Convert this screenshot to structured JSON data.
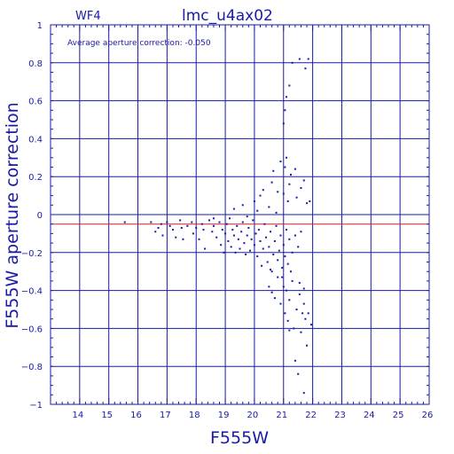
{
  "chart_data": {
    "type": "scatter",
    "title": "lmc_u4ax02",
    "chip": "WF4",
    "annotation": "Average aperture correction: -0.050",
    "xlabel": "F555W",
    "ylabel": "F555W aperture correction",
    "xlim": [
      13,
      26
    ],
    "ylim": [
      -1,
      1
    ],
    "xticks": [
      14,
      15,
      16,
      17,
      18,
      19,
      20,
      21,
      22,
      23,
      24,
      25,
      26
    ],
    "yticks": [
      -1,
      -0.8,
      -0.6,
      -0.4,
      -0.2,
      0,
      0.2,
      0.4,
      0.6,
      0.8,
      1
    ],
    "ytick_labels": [
      "−1",
      "−0.8",
      "−0.6",
      "−0.4",
      "−0.2",
      "0",
      "0.2",
      "0.4",
      "0.6",
      "0.8",
      "1"
    ],
    "grid": true,
    "average_line": -0.05,
    "colors": {
      "axes": "#1a1aa6",
      "points": "#1a1aa6",
      "average_line": "#cc2222"
    },
    "points": [
      [
        15.55,
        -0.04
      ],
      [
        16.45,
        -0.04
      ],
      [
        16.6,
        -0.09
      ],
      [
        16.7,
        -0.07
      ],
      [
        16.8,
        -0.05
      ],
      [
        16.85,
        -0.11
      ],
      [
        17.0,
        -0.04
      ],
      [
        17.1,
        -0.06
      ],
      [
        17.2,
        -0.08
      ],
      [
        17.3,
        -0.12
      ],
      [
        17.45,
        -0.03
      ],
      [
        17.5,
        -0.07
      ],
      [
        17.55,
        -0.13
      ],
      [
        17.7,
        -0.06
      ],
      [
        17.85,
        -0.04
      ],
      [
        17.9,
        -0.1
      ],
      [
        18.0,
        -0.07
      ],
      [
        18.1,
        -0.13
      ],
      [
        18.2,
        -0.05
      ],
      [
        18.25,
        -0.08
      ],
      [
        18.3,
        -0.18
      ],
      [
        18.45,
        -0.03
      ],
      [
        18.55,
        -0.09
      ],
      [
        18.6,
        -0.06
      ],
      [
        18.7,
        -0.12
      ],
      [
        18.8,
        -0.04
      ],
      [
        18.85,
        -0.16
      ],
      [
        18.9,
        -0.08
      ],
      [
        18.95,
        -0.2
      ],
      [
        19.0,
        -0.1
      ],
      [
        19.05,
        -0.05
      ],
      [
        19.1,
        -0.14
      ],
      [
        19.15,
        -0.02
      ],
      [
        19.2,
        -0.17
      ],
      [
        19.25,
        -0.08
      ],
      [
        19.3,
        -0.11
      ],
      [
        19.35,
        -0.2
      ],
      [
        19.4,
        -0.06
      ],
      [
        19.45,
        -0.13
      ],
      [
        19.5,
        -0.18
      ],
      [
        19.55,
        -0.09
      ],
      [
        19.6,
        -0.04
      ],
      [
        19.65,
        -0.15
      ],
      [
        19.7,
        -0.21
      ],
      [
        19.75,
        -0.11
      ],
      [
        19.8,
        -0.07
      ],
      [
        19.85,
        -0.19
      ],
      [
        19.9,
        -0.13
      ],
      [
        19.95,
        -0.03
      ],
      [
        20.0,
        -0.16
      ],
      [
        20.05,
        -0.1
      ],
      [
        20.1,
        -0.22
      ],
      [
        20.15,
        -0.08
      ],
      [
        20.2,
        -0.14
      ],
      [
        20.25,
        -0.27
      ],
      [
        20.3,
        -0.18
      ],
      [
        20.35,
        -0.05
      ],
      [
        20.4,
        -0.12
      ],
      [
        20.45,
        -0.25
      ],
      [
        20.5,
        -0.17
      ],
      [
        20.55,
        -0.09
      ],
      [
        20.6,
        -0.3
      ],
      [
        20.65,
        -0.21
      ],
      [
        20.7,
        -0.14
      ],
      [
        20.75,
        -0.06
      ],
      [
        20.8,
        -0.24
      ],
      [
        20.85,
        -0.19
      ],
      [
        20.9,
        -0.11
      ],
      [
        20.95,
        -0.28
      ],
      [
        21.0,
        -0.16
      ],
      [
        21.05,
        -0.22
      ],
      [
        21.1,
        -0.08
      ],
      [
        21.15,
        -0.26
      ],
      [
        21.2,
        -0.13
      ],
      [
        21.3,
        -0.2
      ],
      [
        21.4,
        -0.11
      ],
      [
        21.5,
        -0.17
      ],
      [
        21.6,
        -0.09
      ],
      [
        18.6,
        -0.02
      ],
      [
        19.3,
        0.03
      ],
      [
        19.6,
        0.05
      ],
      [
        19.75,
        -0.01
      ],
      [
        20.0,
        0.07
      ],
      [
        20.1,
        0.02
      ],
      [
        20.2,
        0.1
      ],
      [
        20.3,
        0.13
      ],
      [
        20.5,
        0.04
      ],
      [
        20.6,
        0.17
      ],
      [
        20.65,
        0.23
      ],
      [
        20.75,
        0.01
      ],
      [
        20.8,
        0.12
      ],
      [
        20.9,
        0.28
      ],
      [
        21.0,
        0.11
      ],
      [
        21.05,
        0.25
      ],
      [
        21.1,
        0.3
      ],
      [
        21.15,
        0.07
      ],
      [
        21.2,
        0.16
      ],
      [
        21.25,
        0.21
      ],
      [
        21.4,
        0.24
      ],
      [
        21.45,
        0.09
      ],
      [
        21.6,
        0.14
      ],
      [
        21.7,
        0.18
      ],
      [
        21.8,
        0.06
      ],
      [
        21.9,
        0.07
      ],
      [
        21.0,
        0.48
      ],
      [
        21.05,
        0.55
      ],
      [
        21.1,
        0.62
      ],
      [
        21.2,
        0.68
      ],
      [
        21.3,
        0.8
      ],
      [
        21.55,
        0.82
      ],
      [
        21.75,
        0.77
      ],
      [
        21.85,
        0.82
      ],
      [
        20.5,
        -0.38
      ],
      [
        20.6,
        -0.41
      ],
      [
        20.7,
        -0.44
      ],
      [
        20.8,
        -0.33
      ],
      [
        20.9,
        -0.47
      ],
      [
        21.0,
        -0.38
      ],
      [
        21.05,
        -0.52
      ],
      [
        21.1,
        -0.4
      ],
      [
        21.15,
        -0.56
      ],
      [
        21.2,
        -0.45
      ],
      [
        21.3,
        -0.35
      ],
      [
        21.35,
        -0.6
      ],
      [
        21.45,
        -0.5
      ],
      [
        21.55,
        -0.42
      ],
      [
        21.6,
        -0.62
      ],
      [
        21.65,
        -0.52
      ],
      [
        21.7,
        -0.47
      ],
      [
        21.75,
        -0.55
      ],
      [
        21.8,
        -0.69
      ],
      [
        21.85,
        -0.52
      ],
      [
        21.95,
        -0.58
      ],
      [
        21.2,
        -0.61
      ],
      [
        21.4,
        -0.77
      ],
      [
        21.5,
        -0.84
      ],
      [
        21.7,
        -0.94
      ],
      [
        20.55,
        -0.29
      ],
      [
        20.95,
        -0.33
      ],
      [
        21.25,
        -0.3
      ],
      [
        21.55,
        -0.36
      ],
      [
        21.7,
        -0.39
      ]
    ]
  }
}
